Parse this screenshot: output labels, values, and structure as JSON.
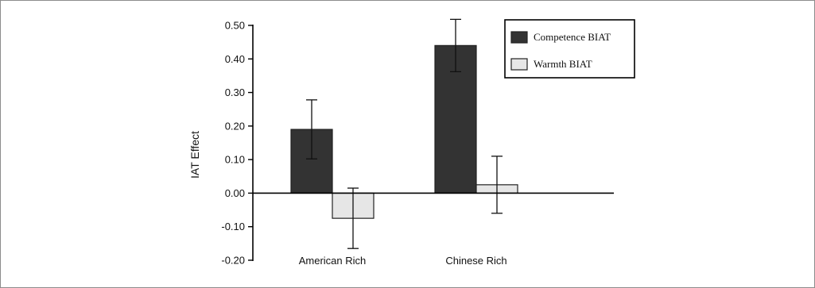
{
  "chart_data": {
    "type": "bar",
    "title": "",
    "xlabel": "",
    "ylabel": "IAT Effect",
    "ylim": [
      -0.2,
      0.5
    ],
    "yticks": [
      "0.50",
      "0.40",
      "0.30",
      "0.20",
      "0.10",
      "0.00",
      "-0.10",
      "-0.20"
    ],
    "categories": [
      "American Rich",
      "Chinese Rich"
    ],
    "series": [
      {
        "name": "Competence BIAT",
        "values": [
          0.19,
          0.44
        ],
        "error": [
          0.088,
          0.078
        ],
        "color": "#333333"
      },
      {
        "name": "Warmth BIAT",
        "values": [
          -0.075,
          0.025
        ],
        "error": [
          0.09,
          0.085
        ],
        "color": "#e6e6e6"
      }
    ],
    "grid": false,
    "legend_position": "top-right"
  }
}
